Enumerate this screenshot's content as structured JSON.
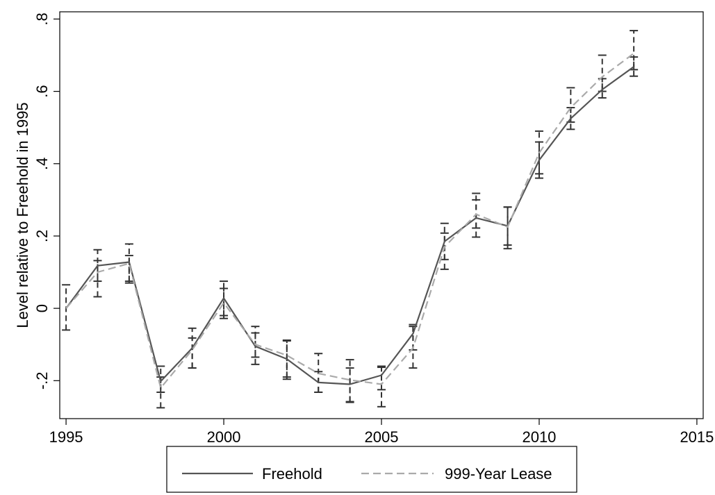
{
  "chart_data": {
    "type": "line",
    "title": "",
    "xlabel": "",
    "ylabel": "Level relative to Freehold in 1995",
    "xlim": [
      1994.8,
      2015.2
    ],
    "ylim": [
      -0.305,
      0.82
    ],
    "x_ticks": [
      1995,
      2000,
      2005,
      2010,
      2015
    ],
    "x_tick_labels": [
      "1995",
      "2000",
      "2005",
      "2010",
      "2015"
    ],
    "y_ticks": [
      -0.2,
      0,
      0.2,
      0.4,
      0.6,
      0.8
    ],
    "y_tick_labels": [
      "-.2",
      "0",
      ".2",
      ".4",
      ".6",
      ".8"
    ],
    "grid": false,
    "legend_position": "bottom",
    "x": [
      1995,
      1996,
      1997,
      1998,
      1999,
      2000,
      2001,
      2002,
      2003,
      2004,
      2005,
      2006,
      2007,
      2008,
      2009,
      2010,
      2011,
      2012,
      2013
    ],
    "series": [
      {
        "name": "Freehold",
        "style": "solid",
        "color": "#555555",
        "values": [
          0.0,
          0.118,
          0.128,
          -0.202,
          -0.11,
          0.028,
          -0.105,
          -0.14,
          -0.205,
          -0.21,
          -0.185,
          -0.07,
          0.185,
          0.25,
          0.228,
          0.41,
          0.525,
          0.605,
          0.668
        ],
        "ci_low": [
          null,
          0.075,
          0.075,
          -0.232,
          -0.165,
          -0.02,
          -0.155,
          -0.19,
          -0.232,
          -0.258,
          -0.225,
          -0.115,
          0.135,
          0.197,
          0.175,
          0.36,
          0.495,
          0.582,
          0.642
        ],
        "ci_high": [
          null,
          0.162,
          0.178,
          -0.16,
          -0.055,
          0.075,
          -0.05,
          -0.09,
          -0.175,
          -0.165,
          -0.16,
          -0.045,
          0.235,
          0.3,
          0.28,
          0.46,
          0.555,
          0.635,
          0.695
        ]
      },
      {
        "name": "999-Year Lease",
        "style": "dashed",
        "color": "#aaaaaa",
        "values": [
          0.0,
          0.1,
          0.124,
          -0.22,
          -0.115,
          0.015,
          -0.1,
          -0.13,
          -0.18,
          -0.198,
          -0.21,
          -0.11,
          0.17,
          0.26,
          0.225,
          0.43,
          0.555,
          0.64,
          0.705
        ],
        "ci_low": [
          -0.06,
          0.032,
          0.07,
          -0.275,
          -0.165,
          -0.028,
          -0.135,
          -0.196,
          -0.232,
          -0.26,
          -0.272,
          -0.165,
          0.108,
          0.222,
          0.165,
          0.372,
          0.515,
          0.6,
          0.66
        ],
        "ci_high": [
          0.065,
          0.132,
          0.146,
          -0.19,
          -0.082,
          0.055,
          -0.068,
          -0.088,
          -0.125,
          -0.142,
          -0.163,
          -0.05,
          0.208,
          0.318,
          0.28,
          0.49,
          0.61,
          0.7,
          0.768
        ]
      }
    ]
  }
}
